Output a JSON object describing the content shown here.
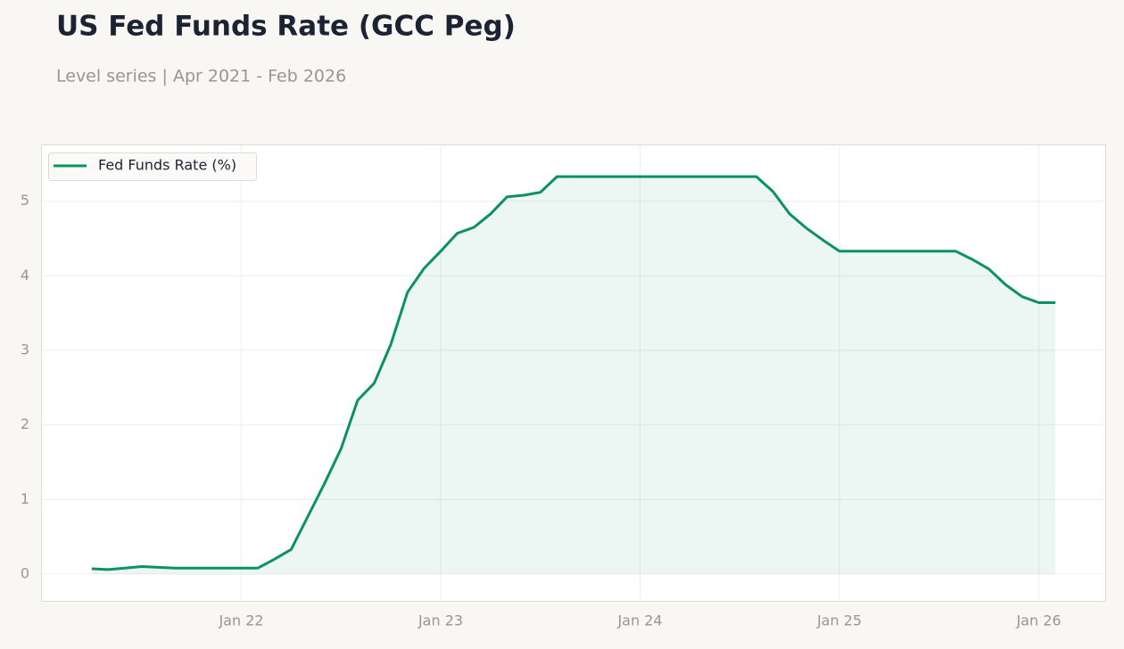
{
  "chart_data": {
    "type": "line",
    "title": "US Fed Funds Rate (GCC Peg)",
    "subtitle": "Level series | Apr 2021 - Feb 2026",
    "x": [
      "2021-04",
      "2021-05",
      "2021-06",
      "2021-07",
      "2021-08",
      "2021-09",
      "2021-10",
      "2021-11",
      "2021-12",
      "2022-01",
      "2022-02",
      "2022-03",
      "2022-04",
      "2022-05",
      "2022-06",
      "2022-07",
      "2022-08",
      "2022-09",
      "2022-10",
      "2022-11",
      "2022-12",
      "2023-01",
      "2023-02",
      "2023-03",
      "2023-04",
      "2023-05",
      "2023-06",
      "2023-07",
      "2023-08",
      "2023-09",
      "2023-10",
      "2023-11",
      "2023-12",
      "2024-01",
      "2024-02",
      "2024-03",
      "2024-04",
      "2024-05",
      "2024-06",
      "2024-07",
      "2024-08",
      "2024-09",
      "2024-10",
      "2024-11",
      "2024-12",
      "2025-01",
      "2025-02",
      "2025-03",
      "2025-04",
      "2025-05",
      "2025-06",
      "2025-07",
      "2025-08",
      "2025-09",
      "2025-10",
      "2025-11",
      "2025-12",
      "2026-01",
      "2026-02"
    ],
    "series": [
      {
        "name": "Fed Funds Rate (%)",
        "color": "#0a9165",
        "values": [
          0.07,
          0.06,
          0.08,
          0.1,
          0.09,
          0.08,
          0.08,
          0.08,
          0.08,
          0.08,
          0.08,
          0.2,
          0.33,
          0.77,
          1.21,
          1.68,
          2.33,
          2.56,
          3.08,
          3.78,
          4.1,
          4.33,
          4.57,
          4.65,
          4.83,
          5.06,
          5.08,
          5.12,
          5.33,
          5.33,
          5.33,
          5.33,
          5.33,
          5.33,
          5.33,
          5.33,
          5.33,
          5.33,
          5.33,
          5.33,
          5.33,
          5.13,
          4.83,
          4.64,
          4.48,
          4.33,
          4.33,
          4.33,
          4.33,
          4.33,
          4.33,
          4.33,
          4.33,
          4.22,
          4.09,
          3.88,
          3.72,
          3.64,
          3.64
        ]
      }
    ],
    "xlim": [
      "2021-01",
      "2026-05"
    ],
    "xticks": [
      {
        "value": "2022-01",
        "label": "Jan 22"
      },
      {
        "value": "2023-01",
        "label": "Jan 23"
      },
      {
        "value": "2024-01",
        "label": "Jan 24"
      },
      {
        "value": "2025-01",
        "label": "Jan 25"
      },
      {
        "value": "2026-01",
        "label": "Jan 26"
      }
    ],
    "ylim": [
      -0.36,
      5.75
    ],
    "yticks": [
      0,
      1,
      2,
      3,
      4,
      5
    ],
    "grid": true,
    "legend": "upper-left",
    "area": true
  }
}
